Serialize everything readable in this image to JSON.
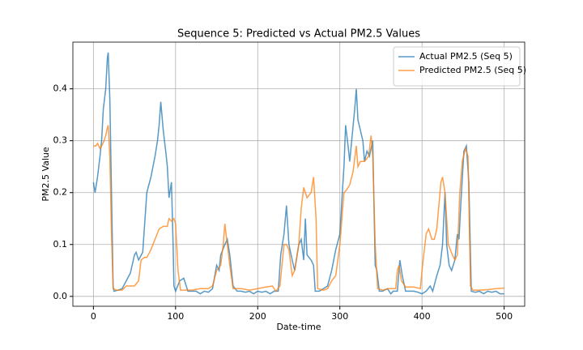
{
  "chart_data": {
    "type": "line",
    "title": "Sequence 5: Predicted vs Actual PM2.5 Values",
    "xlabel": "Date-time",
    "ylabel": "PM2.5 Value",
    "xlim": [
      -25,
      525
    ],
    "ylim": [
      -0.019,
      0.49
    ],
    "xticks": [
      0,
      100,
      200,
      300,
      400,
      500
    ],
    "yticks": [
      {
        "value": 0,
        "label": "0.0"
      },
      0.1,
      0.2,
      0.3,
      0.4
    ],
    "grid": true,
    "legend": "upper right",
    "series": [
      {
        "name": "Actual PM2.5 (Seq 5)",
        "color": "#1f77b4",
        "x": [
          0,
          2,
          5,
          8,
          10,
          12,
          15,
          17,
          18,
          20,
          22,
          24,
          25,
          30,
          35,
          40,
          45,
          50,
          52,
          55,
          60,
          65,
          70,
          75,
          78,
          80,
          82,
          85,
          88,
          90,
          92,
          95,
          97,
          98,
          100,
          105,
          110,
          115,
          120,
          125,
          130,
          135,
          140,
          145,
          150,
          153,
          155,
          160,
          163,
          166,
          170,
          175,
          180,
          185,
          190,
          195,
          200,
          205,
          210,
          215,
          220,
          225,
          228,
          232,
          235,
          238,
          242,
          245,
          250,
          253,
          256,
          258,
          260,
          265,
          268,
          270,
          275,
          280,
          285,
          290,
          295,
          300,
          303,
          305,
          307,
          310,
          312,
          315,
          318,
          320,
          322,
          325,
          328,
          330,
          333,
          336,
          340,
          343,
          345,
          348,
          352,
          358,
          362,
          365,
          370,
          373,
          376,
          380,
          385,
          390,
          395,
          400,
          405,
          410,
          413,
          418,
          422,
          425,
          428,
          430,
          433,
          436,
          440,
          443,
          445,
          448,
          451,
          454,
          457,
          460,
          465,
          470,
          475,
          480,
          485,
          490,
          495,
          500
        ],
        "values": [
          0.22,
          0.2,
          0.23,
          0.27,
          0.3,
          0.36,
          0.4,
          0.46,
          0.47,
          0.38,
          0.2,
          0.02,
          0.01,
          0.012,
          0.015,
          0.03,
          0.045,
          0.08,
          0.085,
          0.07,
          0.085,
          0.2,
          0.23,
          0.27,
          0.3,
          0.33,
          0.375,
          0.32,
          0.28,
          0.25,
          0.19,
          0.22,
          0.1,
          0.02,
          0.01,
          0.03,
          0.035,
          0.01,
          0.01,
          0.01,
          0.005,
          0.01,
          0.008,
          0.015,
          0.06,
          0.05,
          0.08,
          0.1,
          0.11,
          0.08,
          0.02,
          0.01,
          0.01,
          0.008,
          0.01,
          0.005,
          0.01,
          0.008,
          0.01,
          0.005,
          0.01,
          0.01,
          0.08,
          0.12,
          0.175,
          0.1,
          0.07,
          0.05,
          0.1,
          0.11,
          0.07,
          0.15,
          0.08,
          0.07,
          0.06,
          0.01,
          0.01,
          0.015,
          0.02,
          0.05,
          0.09,
          0.12,
          0.2,
          0.25,
          0.33,
          0.29,
          0.26,
          0.31,
          0.36,
          0.4,
          0.34,
          0.32,
          0.3,
          0.26,
          0.28,
          0.27,
          0.3,
          0.06,
          0.05,
          0.01,
          0.01,
          0.015,
          0.005,
          0.01,
          0.01,
          0.07,
          0.04,
          0.01,
          0.01,
          0.01,
          0.008,
          0.005,
          0.01,
          0.02,
          0.01,
          0.04,
          0.06,
          0.1,
          0.2,
          0.1,
          0.06,
          0.05,
          0.07,
          0.12,
          0.11,
          0.2,
          0.28,
          0.29,
          0.22,
          0.01,
          0.008,
          0.01,
          0.005,
          0.01,
          0.008,
          0.01,
          0.005,
          0.005
        ]
      },
      {
        "name": "Predicted PM2.5 (Seq 5)",
        "color": "#ff7f0e",
        "x": [
          0,
          3,
          5,
          8,
          10,
          13,
          15,
          17,
          18,
          20,
          22,
          24,
          28,
          35,
          40,
          45,
          50,
          55,
          58,
          62,
          65,
          70,
          75,
          80,
          85,
          90,
          92,
          95,
          98,
          100,
          103,
          106,
          110,
          120,
          130,
          140,
          145,
          150,
          155,
          158,
          160,
          163,
          166,
          170,
          180,
          190,
          200,
          210,
          218,
          222,
          227,
          232,
          235,
          238,
          242,
          245,
          250,
          253,
          256,
          260,
          265,
          268,
          271,
          273,
          280,
          285,
          290,
          295,
          300,
          305,
          308,
          312,
          316,
          320,
          322,
          325,
          330,
          335,
          338,
          340,
          343,
          346,
          352,
          360,
          368,
          370,
          372,
          375,
          380,
          390,
          398,
          400,
          405,
          408,
          412,
          415,
          418,
          423,
          425,
          428,
          432,
          437,
          440,
          443,
          446,
          449,
          453,
          456,
          459,
          462,
          470,
          480,
          490,
          500
        ],
        "values": [
          0.29,
          0.29,
          0.295,
          0.285,
          0.29,
          0.3,
          0.31,
          0.325,
          0.33,
          0.27,
          0.12,
          0.015,
          0.012,
          0.012,
          0.02,
          0.02,
          0.02,
          0.03,
          0.07,
          0.075,
          0.075,
          0.09,
          0.11,
          0.13,
          0.135,
          0.135,
          0.15,
          0.145,
          0.15,
          0.14,
          0.05,
          0.012,
          0.012,
          0.012,
          0.015,
          0.015,
          0.02,
          0.05,
          0.06,
          0.1,
          0.14,
          0.1,
          0.06,
          0.015,
          0.015,
          0.012,
          0.015,
          0.018,
          0.02,
          0.01,
          0.02,
          0.1,
          0.1,
          0.09,
          0.04,
          0.05,
          0.1,
          0.17,
          0.21,
          0.19,
          0.2,
          0.23,
          0.15,
          0.015,
          0.012,
          0.015,
          0.03,
          0.04,
          0.1,
          0.2,
          0.205,
          0.215,
          0.24,
          0.29,
          0.25,
          0.26,
          0.26,
          0.27,
          0.31,
          0.27,
          0.1,
          0.015,
          0.012,
          0.015,
          0.015,
          0.05,
          0.06,
          0.03,
          0.018,
          0.018,
          0.015,
          0.05,
          0.12,
          0.13,
          0.11,
          0.11,
          0.13,
          0.22,
          0.23,
          0.2,
          0.1,
          0.08,
          0.07,
          0.08,
          0.2,
          0.26,
          0.285,
          0.27,
          0.02,
          0.012,
          0.012,
          0.013,
          0.015,
          0.016
        ]
      }
    ]
  }
}
